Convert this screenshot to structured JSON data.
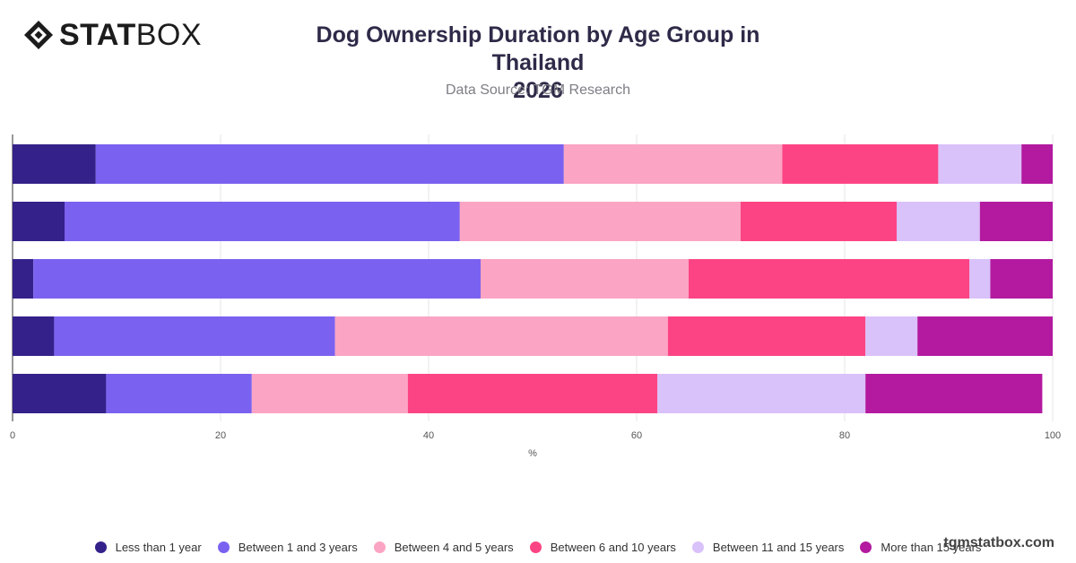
{
  "brand": {
    "bold": "STAT",
    "light": "BOX",
    "watermark": "tgmstatbox.com"
  },
  "chart_data": {
    "type": "bar",
    "orientation": "horizontal",
    "stacked": true,
    "title_line1": "Dog Ownership Duration by Age Group in Thailand",
    "title_line2": "2026",
    "subtitle": "Data Source: TGM Research",
    "xlabel": "%",
    "ylabel": "",
    "xlim": [
      0,
      100
    ],
    "xticks": [
      0,
      20,
      40,
      60,
      80,
      100
    ],
    "grid": true,
    "legend_position": "bottom",
    "categories": [
      "",
      "",
      "",
      "",
      ""
    ],
    "series": [
      {
        "name": "Less than 1 year",
        "color": "#35218a",
        "values": [
          8,
          5,
          2,
          4,
          9
        ]
      },
      {
        "name": "Between 1 and 3 years",
        "color": "#7b61f0",
        "values": [
          45,
          38,
          43,
          27,
          14
        ]
      },
      {
        "name": "Between 4 and 5 years",
        "color": "#fba4c3",
        "values": [
          21,
          27,
          20,
          32,
          15
        ]
      },
      {
        "name": "Between 6 and 10 years",
        "color": "#fc4484",
        "values": [
          15,
          15,
          27,
          19,
          24
        ]
      },
      {
        "name": "Between 11 and 15 years",
        "color": "#d9c1fa",
        "values": [
          8,
          8,
          2,
          5,
          20
        ]
      },
      {
        "name": "More than 15 years",
        "color": "#b31aa0",
        "values": [
          3,
          7,
          6,
          13,
          17
        ]
      }
    ]
  }
}
